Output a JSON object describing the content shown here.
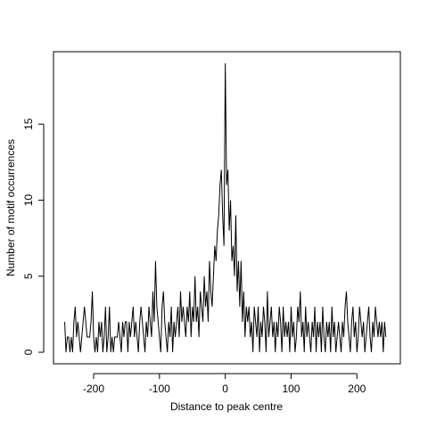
{
  "chart_data": {
    "type": "line",
    "xlabel": "Distance to peak centre",
    "ylabel": "Number of motif occurrences",
    "color": "#000000",
    "xlim": [
      -261,
      266
    ],
    "ylim": [
      -0.76,
      19.76
    ],
    "xticks": [
      -200,
      -100,
      0,
      100,
      200
    ],
    "yticks": [
      0,
      5,
      10,
      15
    ],
    "x": [
      -244,
      -242,
      -240,
      -238,
      -236,
      -234,
      -232,
      -230,
      -228,
      -226,
      -224,
      -222,
      -220,
      -218,
      -216,
      -214,
      -212,
      -210,
      -208,
      -206,
      -204,
      -202,
      -200,
      -198,
      -196,
      -194,
      -192,
      -190,
      -188,
      -186,
      -184,
      -182,
      -180,
      -178,
      -176,
      -174,
      -172,
      -170,
      -168,
      -166,
      -164,
      -162,
      -160,
      -158,
      -156,
      -154,
      -152,
      -150,
      -148,
      -146,
      -144,
      -142,
      -140,
      -138,
      -136,
      -134,
      -132,
      -130,
      -128,
      -126,
      -124,
      -122,
      -120,
      -118,
      -116,
      -114,
      -112,
      -110,
      -108,
      -106,
      -104,
      -102,
      -100,
      -98,
      -96,
      -94,
      -92,
      -90,
      -88,
      -86,
      -84,
      -82,
      -80,
      -78,
      -76,
      -74,
      -72,
      -70,
      -68,
      -66,
      -64,
      -62,
      -60,
      -58,
      -56,
      -54,
      -52,
      -50,
      -48,
      -46,
      -44,
      -42,
      -40,
      -38,
      -36,
      -34,
      -32,
      -30,
      -28,
      -26,
      -24,
      -22,
      -20,
      -18,
      -16,
      -14,
      -12,
      -10,
      -8,
      -6,
      -4,
      -2,
      0,
      2,
      4,
      6,
      8,
      10,
      12,
      14,
      16,
      18,
      20,
      22,
      24,
      26,
      28,
      30,
      32,
      34,
      36,
      38,
      40,
      42,
      44,
      46,
      48,
      50,
      52,
      54,
      56,
      58,
      60,
      62,
      64,
      66,
      68,
      70,
      72,
      74,
      76,
      78,
      80,
      82,
      84,
      86,
      88,
      90,
      92,
      94,
      96,
      98,
      100,
      102,
      104,
      106,
      108,
      110,
      112,
      114,
      116,
      118,
      120,
      122,
      124,
      126,
      128,
      130,
      132,
      134,
      136,
      138,
      140,
      142,
      144,
      146,
      148,
      150,
      152,
      154,
      156,
      158,
      160,
      162,
      164,
      166,
      168,
      170,
      172,
      174,
      176,
      178,
      180,
      182,
      184,
      186,
      188,
      190,
      192,
      194,
      196,
      198,
      200,
      202,
      204,
      206,
      208,
      210,
      212,
      214,
      216,
      218,
      220,
      222,
      224,
      226,
      228,
      230,
      232,
      234,
      236,
      238,
      240,
      242,
      244
    ],
    "values": [
      2,
      0,
      1,
      1,
      0,
      1,
      0,
      2,
      3,
      1,
      2,
      1,
      0,
      1,
      2,
      3,
      2,
      1,
      1,
      1,
      2,
      4,
      1,
      0,
      1,
      0,
      2,
      1,
      2,
      0,
      1,
      3,
      0,
      1,
      3,
      0,
      1,
      0,
      1,
      1,
      1,
      2,
      1,
      0,
      2,
      1,
      2,
      2,
      0,
      2,
      1,
      2,
      3,
      1,
      2,
      1,
      0,
      2,
      3,
      2,
      1,
      0,
      2,
      1,
      3,
      2,
      1,
      4,
      2,
      6,
      3,
      2,
      1,
      0,
      3,
      4,
      2,
      1,
      0,
      2,
      1,
      3,
      0,
      2,
      1,
      2,
      3,
      1,
      4,
      2,
      3,
      2,
      1,
      3,
      2,
      4,
      1,
      3,
      2,
      5,
      2,
      3,
      1,
      4,
      3,
      2,
      5,
      3,
      4,
      2,
      6,
      4,
      3,
      5,
      7,
      6,
      8,
      9,
      11,
      12,
      9,
      7,
      19,
      11,
      12,
      8,
      10,
      6,
      7,
      5,
      9,
      4,
      6,
      3,
      6,
      2,
      4,
      1,
      3,
      2,
      3,
      1,
      2,
      0,
      3,
      2,
      1,
      3,
      0,
      2,
      1,
      3,
      2,
      0,
      4,
      1,
      2,
      3,
      1,
      2,
      0,
      2,
      1,
      3,
      2,
      0,
      3,
      1,
      2,
      1,
      2,
      0,
      3,
      1,
      2,
      0,
      1,
      3,
      2,
      4,
      1,
      2,
      0,
      3,
      1,
      2,
      1,
      0,
      2,
      1,
      3,
      0,
      2,
      1,
      2,
      0,
      3,
      1,
      0,
      2,
      1,
      2,
      0,
      3,
      1,
      2,
      0,
      1,
      2,
      1,
      0,
      2,
      1,
      3,
      4,
      2,
      1,
      0,
      2,
      3,
      1,
      2,
      0,
      1,
      3,
      2,
      1,
      2,
      0,
      1,
      2,
      3,
      1,
      0,
      2,
      1,
      3,
      2,
      1,
      2,
      1,
      2,
      0,
      2,
      1
    ]
  }
}
